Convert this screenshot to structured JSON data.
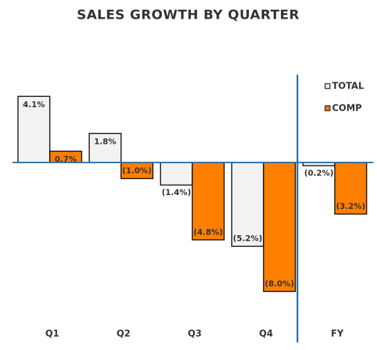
{
  "chart_data": {
    "type": "bar",
    "title": "SALES GROWTH BY QUARTER",
    "categories": [
      "Q1",
      "Q2",
      "Q3",
      "Q4",
      "FY"
    ],
    "series": [
      {
        "name": "TOTAL",
        "color": "#f2f2f2",
        "values": [
          4.1,
          1.8,
          -1.4,
          -5.2,
          -0.2
        ],
        "value_labels": [
          "4.1%",
          "1.8%",
          "(1.4%)",
          "(5.2%)",
          "(0.2%)"
        ]
      },
      {
        "name": "COMP",
        "color": "#ff7f00",
        "values": [
          0.7,
          -1.0,
          -4.8,
          -8.0,
          -3.2
        ],
        "value_labels": [
          "0.7%",
          "(1.0%)",
          "(4.8%)",
          "(8.0%)",
          "(3.2%)"
        ]
      }
    ],
    "ylim": [
      -10,
      6
    ],
    "legend": "top-right"
  }
}
